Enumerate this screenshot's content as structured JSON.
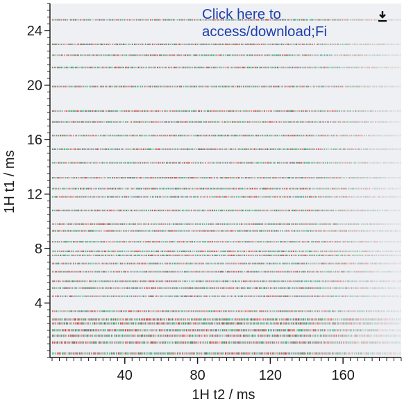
{
  "overlay": {
    "link_line1": "Click here to",
    "link_line2": "access/download;Fi",
    "download_icon": "download-icon",
    "link_color": "#1f3fae"
  },
  "chart_data": {
    "type": "heatmap",
    "title": "",
    "xlabel": "1H t2 / ms",
    "ylabel": "1H  t1 / ms",
    "xlim": [
      0,
      192
    ],
    "ylim": [
      0,
      26
    ],
    "xticks": [
      40,
      80,
      120,
      160
    ],
    "yticks": [
      4,
      8,
      12,
      16,
      20,
      24
    ],
    "grid": false,
    "legend": "none",
    "colors": {
      "background": "#eef0f3",
      "peak_red": "#d0473f",
      "peak_green": "#2ea368",
      "peak_gray": "#6f6f6f"
    },
    "rows_t1_ms": [
      0.3,
      1.1,
      1.6,
      2.0,
      2.5,
      2.8,
      3.4,
      4.5,
      5.1,
      5.6,
      6.3,
      6.9,
      7.5,
      7.8,
      8.5,
      9.3,
      9.8,
      10.8,
      11.8,
      12.4,
      13.2,
      14.3,
      15.3,
      16.3,
      17.3,
      18.1,
      19.9,
      21.3,
      22.2,
      23.0,
      24.8
    ]
  }
}
